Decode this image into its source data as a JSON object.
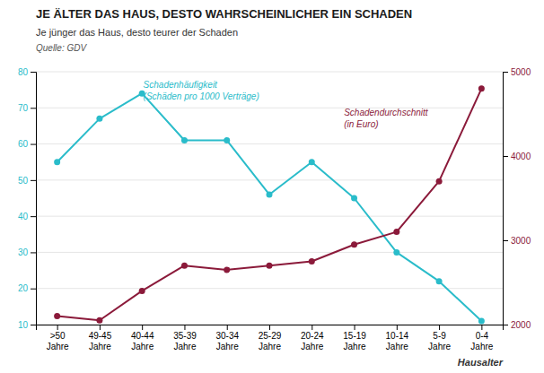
{
  "chart_data": {
    "type": "line",
    "title": "JE ÄLTER DAS HAUS, DESTO WAHRSCHEINLICHER EIN SCHADEN",
    "subtitle": "Je jünger das Haus, desto teurer der Schaden",
    "source": "Quelle: GDV",
    "x_label": "Hausalter",
    "categories": [
      ">50\nJahre",
      "49-45\nJahre",
      "40-44\nJahre",
      "35-39\nJahre",
      "30-34\nJahre",
      "25-29\nJahre",
      "20-24\nJahre",
      "15-19\nJahre",
      "10-14\nJahre",
      "5-9\nJahre",
      "0-4\nJahre"
    ],
    "series": [
      {
        "color": "#2abcca",
        "marker": "circle",
        "axis": "y",
        "values": [
          55,
          67,
          74,
          61,
          61,
          46,
          55,
          45,
          30,
          22,
          11
        ]
      },
      {
        "color": "#8b1a3a",
        "marker": "circle",
        "axis": "y2",
        "values": [
          2100,
          2050,
          2400,
          2700,
          2650,
          2700,
          2750,
          2950,
          3100,
          3700,
          4800
        ]
      }
    ],
    "annotations": [
      {
        "text": "Schadenhäufigkeit\n(Schäden pro 1000 Verträge)",
        "color": "#2abcca"
      },
      {
        "text": "Schadendurchschnitt\n(in Euro)",
        "color": "#8b1a3a"
      }
    ],
    "ylim": [
      10,
      80
    ],
    "yticks": [
      10,
      20,
      30,
      40,
      50,
      60,
      70,
      80
    ],
    "y2lim": [
      2000,
      5000
    ],
    "y2ticks": [
      2000,
      3000,
      4000,
      5000
    ],
    "grid": true
  }
}
